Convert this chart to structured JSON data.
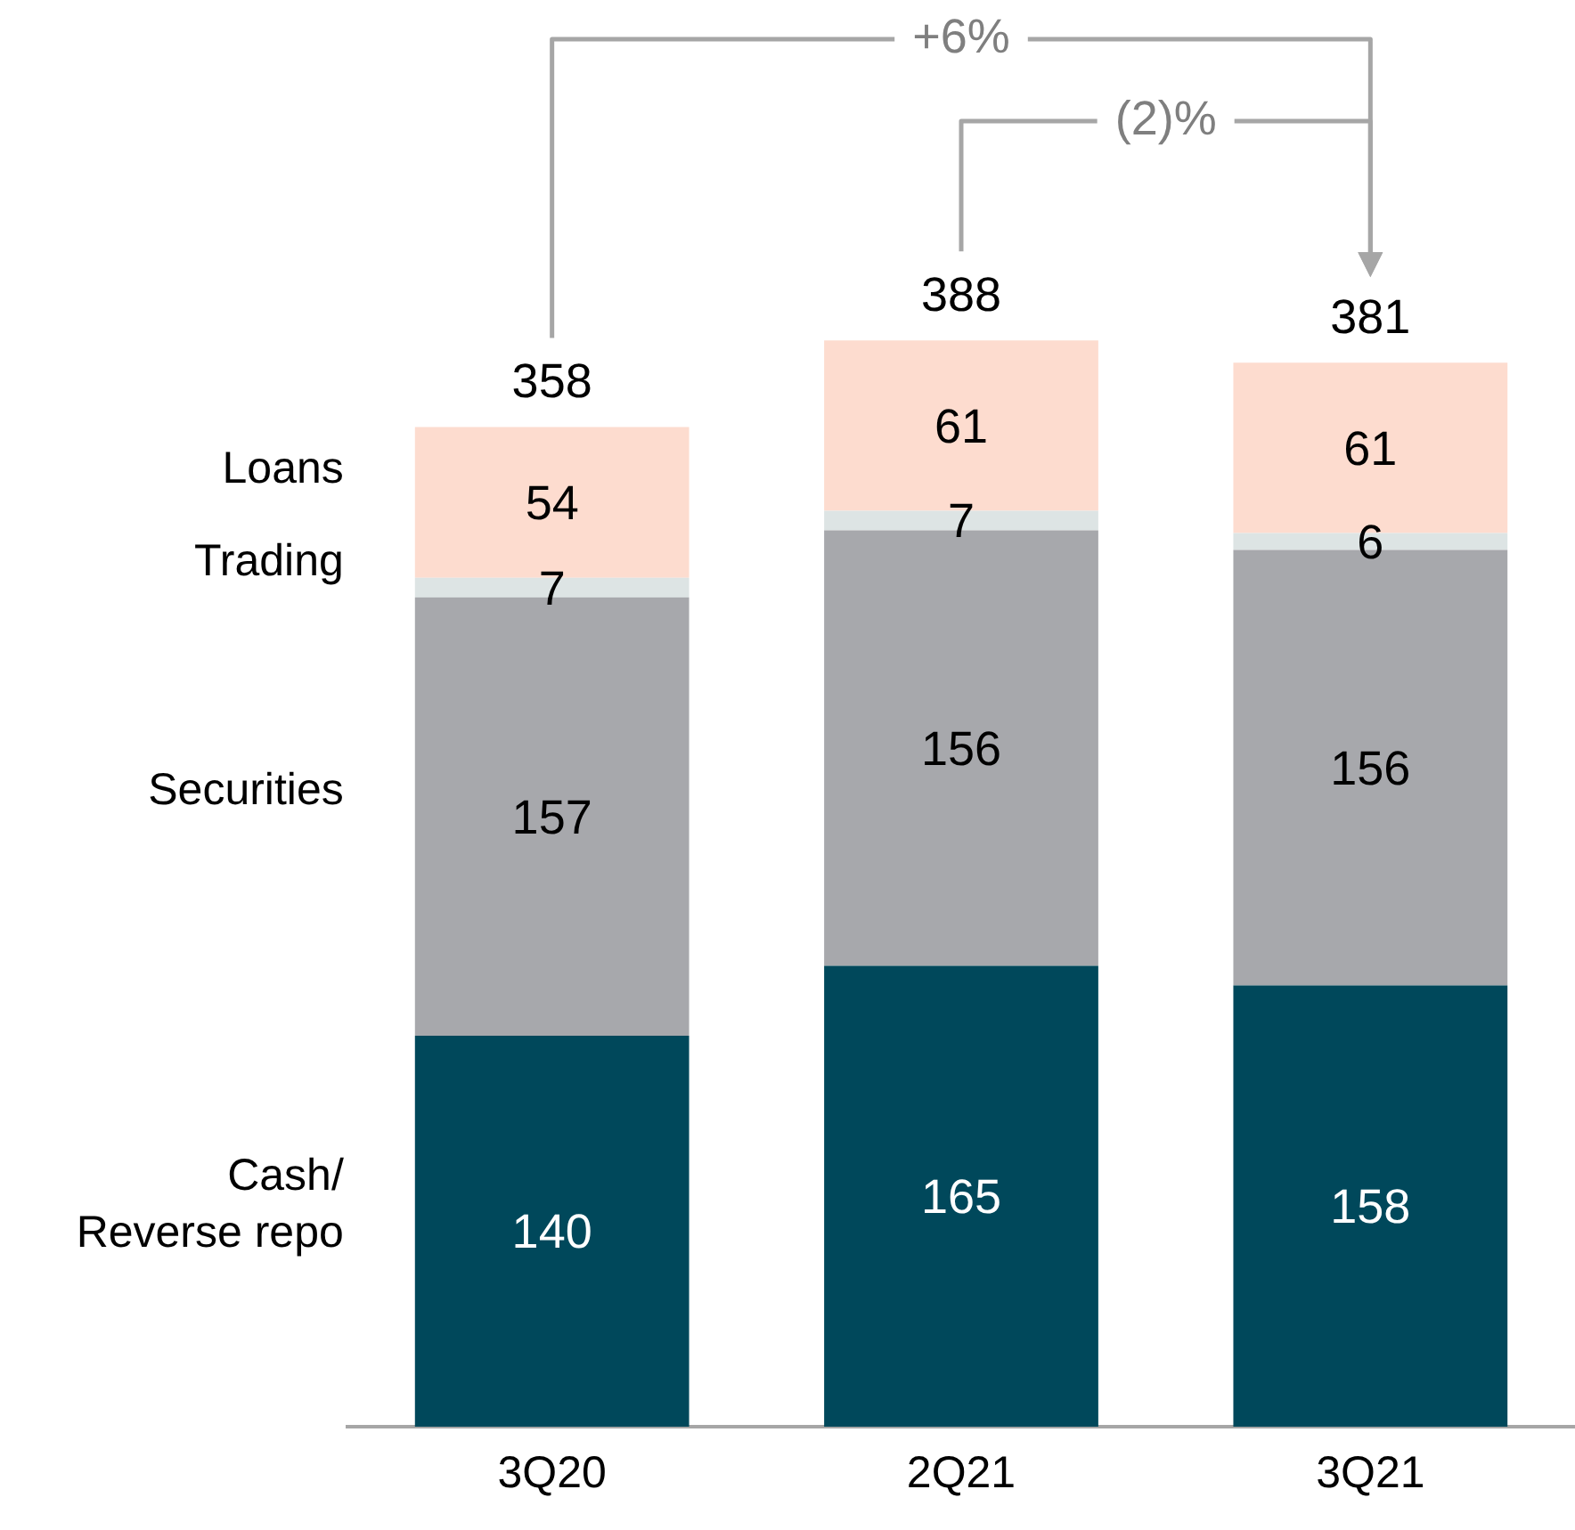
{
  "chart_data": {
    "type": "bar",
    "stacked": true,
    "data_labels": true,
    "categories": [
      "3Q20",
      "2Q21",
      "3Q21"
    ],
    "series": [
      {
        "name": "Cash/ Reverse repo",
        "color": "#00485b",
        "values": [
          140,
          165,
          158
        ]
      },
      {
        "name": "Securities",
        "color": "#a7a8ac",
        "values": [
          157,
          156,
          156
        ]
      },
      {
        "name": "Trading",
        "color": "#dde4e4",
        "values": [
          7,
          7,
          6
        ]
      },
      {
        "name": "Loans",
        "color": "#fddccf",
        "values": [
          54,
          61,
          61
        ]
      }
    ],
    "totals": [
      "358",
      "388",
      "381"
    ],
    "annotations": [
      "+6%",
      "(2)%"
    ]
  }
}
